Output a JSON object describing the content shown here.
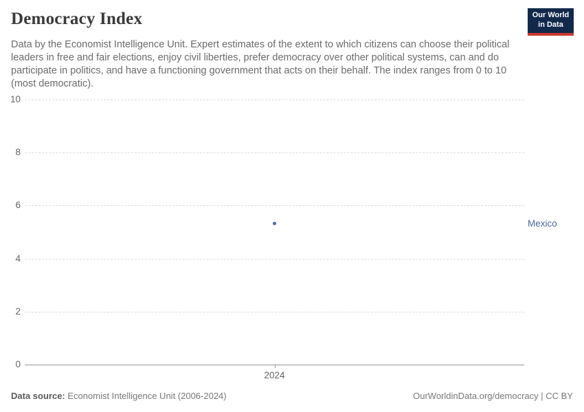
{
  "header": {
    "title": "Democracy Index",
    "subtitle": "Data by the Economist Intelligence Unit. Expert estimates of the extent to which citizens can choose their political leaders in free and fair elections, enjoy civil liberties, prefer democracy over other political systems, can and do participate in politics, and have a functioning government that acts on their behalf. The index ranges from 0 to 10 (most democratic).",
    "logo": {
      "line1": "Our World",
      "line2": "in Data",
      "bg_color": "#12294b",
      "accent_color": "#cc3a30",
      "text_color": "#ffffff"
    }
  },
  "chart_data": {
    "type": "scatter",
    "title": "Democracy Index",
    "series": [
      {
        "name": "Mexico",
        "x": [
          2024
        ],
        "values": [
          5.32
        ],
        "color": "#4c6a9c"
      }
    ],
    "x_tick_labels": [
      "2024"
    ],
    "y_ticks": [
      0,
      2,
      4,
      6,
      8,
      10
    ],
    "ylim": [
      0,
      10
    ],
    "grid": "horizontal-dashed",
    "gridline_color": "#dcdcdc",
    "axis_line_color": "#949494",
    "tick_label_color": "#666666",
    "entity_label": "Mexico",
    "entity_label_position": "right"
  },
  "footer": {
    "source_label": "Data source:",
    "source_text": "Economist Intelligence Unit (2006-2024)",
    "credit": "OurWorldinData.org/democracy | CC BY"
  }
}
